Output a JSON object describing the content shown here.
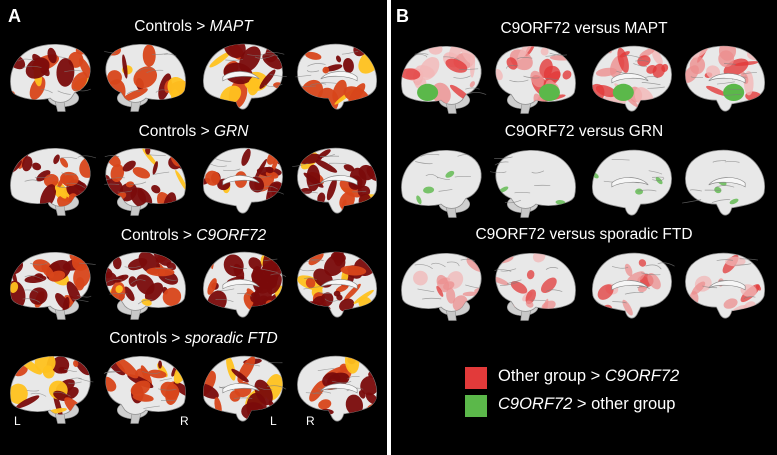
{
  "panel_a": {
    "letter": "A",
    "rows": [
      {
        "prefix": "Controls > ",
        "group": "MAPT"
      },
      {
        "prefix": "Controls > ",
        "group": "GRN"
      },
      {
        "prefix": "Controls > ",
        "group": "C9ORF72"
      },
      {
        "prefix": "Controls > ",
        "group": "sporadic FTD"
      }
    ],
    "side_labels": [
      "L",
      "R",
      "L",
      "R"
    ]
  },
  "panel_b": {
    "letter": "B",
    "rows": [
      {
        "title": "C9ORF72 versus MAPT"
      },
      {
        "title": "C9ORF72 versus GRN"
      },
      {
        "title": "C9ORF72 versus sporadic FTD"
      }
    ],
    "legend": [
      {
        "label_before": "Other group > ",
        "label_italic": "C9ORF72",
        "label_after": "",
        "color": "#e23a3a"
      },
      {
        "label_before": "",
        "label_italic": "C9ORF72",
        "label_after": " > other group",
        "color": "#5bb84a"
      }
    ]
  },
  "colors": {
    "background": "#000000",
    "brain_surface": "#e8e8e8",
    "atrophy_dark": "#7a0b0b",
    "atrophy_mid": "#d8461a",
    "atrophy_bright": "#ffc21f",
    "contrast_red": "#e23a3a",
    "contrast_green": "#5bb84a"
  }
}
